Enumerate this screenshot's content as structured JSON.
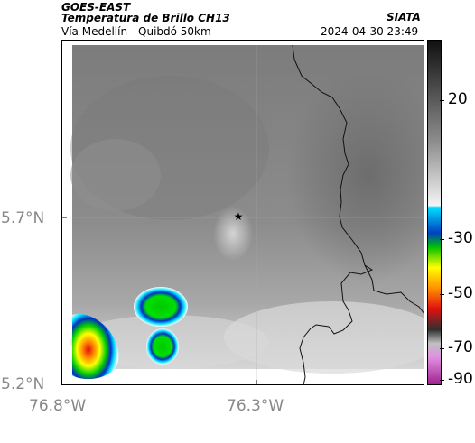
{
  "header": {
    "product": "GOES-EAST",
    "band": "Temperatura de Brillo CH13",
    "region": "Vía Medellín - Quibdó 50km",
    "organization": "SIATA",
    "timestamp": "2024-04-30 23:49"
  },
  "map": {
    "latitude_labels": [
      "5.7°N",
      "5.2°N"
    ],
    "longitude_labels": [
      "76.8°W",
      "76.3°W"
    ],
    "marker": "star-icon"
  },
  "colorbar": {
    "labels": [
      "20",
      "-30",
      "-50",
      "-70",
      "-90"
    ]
  },
  "colors": {
    "background_gray": "#8a8a8a",
    "cold_cyan": "#00e0ff",
    "cold_blue": "#0030c0",
    "cold_green": "#00d000",
    "cold_yellow": "#ffff00",
    "cold_orange": "#ff8000",
    "cold_red": "#e01010"
  }
}
